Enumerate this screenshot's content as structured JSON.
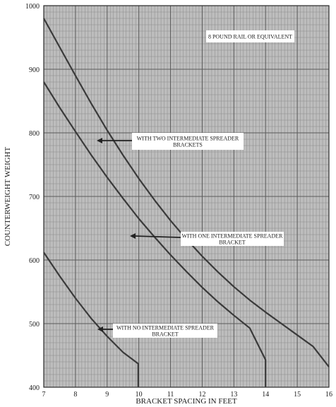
{
  "chart_data": {
    "type": "line",
    "xlabel": "BRACKET SPACING IN FEET",
    "ylabel": "COUNTERWEIGHT WEIGHT",
    "xlim": [
      7,
      16
    ],
    "ylim": [
      400,
      1000
    ],
    "x_ticks": [
      "7",
      "8",
      "9",
      "10",
      "11",
      "12",
      "13",
      "14",
      "15",
      "16"
    ],
    "y_ticks": [
      "400",
      "500",
      "600",
      "700",
      "800",
      "900",
      "1000"
    ],
    "grid": true,
    "line_color": "#3a3a3a",
    "grid_color": "#9a9a9a",
    "series": [
      {
        "name": "WITH TWO INTERMEDIATE SPREADER BRACKETS",
        "points": [
          [
            7.0,
            980
          ],
          [
            7.5,
            935
          ],
          [
            8.0,
            890
          ],
          [
            8.5,
            846
          ],
          [
            9.0,
            804
          ],
          [
            9.5,
            765
          ],
          [
            10.0,
            728
          ],
          [
            10.5,
            694
          ],
          [
            11.0,
            662
          ],
          [
            11.5,
            633
          ],
          [
            12.0,
            606
          ],
          [
            12.5,
            581
          ],
          [
            13.0,
            558
          ],
          [
            13.5,
            537
          ],
          [
            14.0,
            518
          ],
          [
            14.5,
            500
          ],
          [
            15.0,
            482
          ],
          [
            15.5,
            464
          ],
          [
            16.0,
            432
          ]
        ]
      },
      {
        "name": "WITH ONE INTERMEDIATE SPREADER BRACKET",
        "points": [
          [
            7.0,
            880
          ],
          [
            7.5,
            840
          ],
          [
            8.0,
            802
          ],
          [
            8.5,
            765
          ],
          [
            9.0,
            730
          ],
          [
            9.5,
            697
          ],
          [
            10.0,
            665
          ],
          [
            10.5,
            636
          ],
          [
            11.0,
            608
          ],
          [
            11.5,
            582
          ],
          [
            12.0,
            557
          ],
          [
            12.5,
            534
          ],
          [
            13.0,
            513
          ],
          [
            13.5,
            493
          ],
          [
            14.0,
            443
          ],
          [
            14.0,
            400
          ]
        ]
      },
      {
        "name": "WITH NO INTERMEDIATE SPREADER BRACKET",
        "points": [
          [
            7.0,
            612
          ],
          [
            7.5,
            575
          ],
          [
            8.0,
            540
          ],
          [
            8.5,
            508
          ],
          [
            9.0,
            480
          ],
          [
            9.5,
            455
          ],
          [
            9.98,
            437
          ],
          [
            9.98,
            400
          ]
        ]
      }
    ],
    "annotations": [
      {
        "text": "8 POUND RAIL OR EQUIVALENT",
        "lines": [
          "8 POUND RAIL OR EQUIVALENT"
        ],
        "arrow": false
      },
      {
        "text": "WITH TWO INTERMEDIATE SPREADER BRACKETS",
        "lines": [
          "WITH TWO INTERMEDIATE SPREADER",
          "BRACKETS"
        ],
        "arrow": true,
        "series": 0
      },
      {
        "text": "WITH ONE INTERMEDIATE SPREADER BRACKET",
        "lines": [
          "WITH ONE INTERMEDIATE SPREADER",
          "BRACKET"
        ],
        "arrow": true,
        "series": 1
      },
      {
        "text": "WITH NO INTERMEDIATE SPREADER BRACKET",
        "lines": [
          "WITH NO INTERMEDIATE SPREADER",
          "BRACKET"
        ],
        "arrow": true,
        "series": 2
      }
    ]
  }
}
